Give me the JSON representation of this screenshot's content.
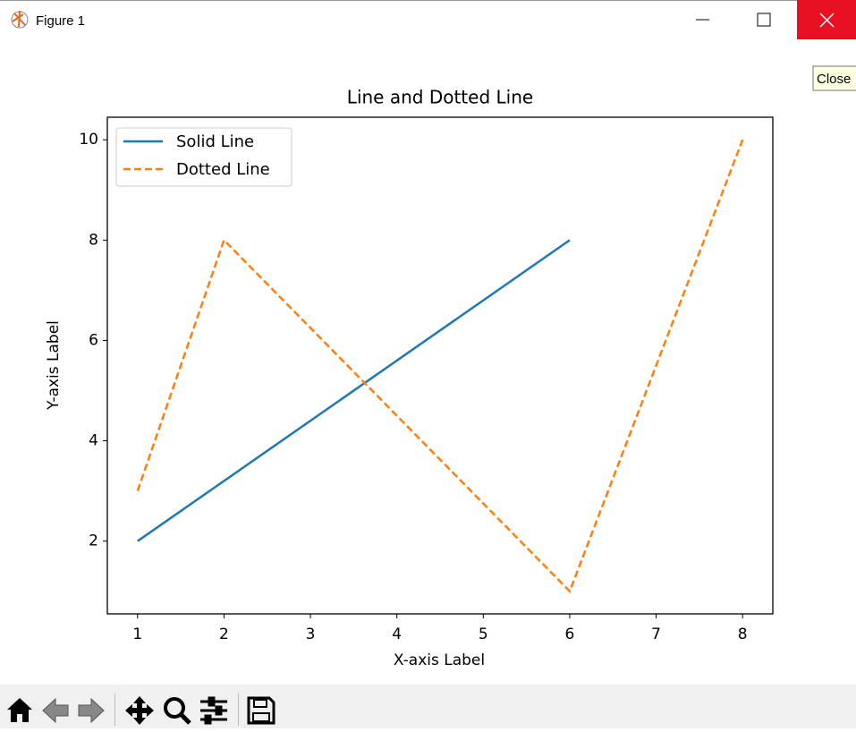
{
  "window": {
    "title": "Figure 1",
    "tooltip": "Close"
  },
  "chart_data": {
    "type": "line",
    "title": "Line and Dotted Line",
    "x_label": "X-axis Label",
    "y_label": "Y-axis Label",
    "series": [
      {
        "name": "Solid Line",
        "color": "#1f77b4",
        "style": "solid",
        "x": [
          1,
          6
        ],
        "values": [
          2,
          8
        ]
      },
      {
        "name": "Dotted Line",
        "color": "#ff7f0e",
        "style": "dashed",
        "x": [
          1,
          2,
          6,
          8
        ],
        "values": [
          3,
          8,
          1,
          10
        ]
      }
    ],
    "xlim": [
      0.65,
      8.35
    ],
    "xticks": [
      1,
      2,
      3,
      4,
      5,
      6,
      7,
      8
    ],
    "ylim": [
      0.55,
      10.45
    ],
    "yticks": [
      2,
      4,
      6,
      8,
      10
    ],
    "grid": false,
    "legend": "upper left"
  }
}
